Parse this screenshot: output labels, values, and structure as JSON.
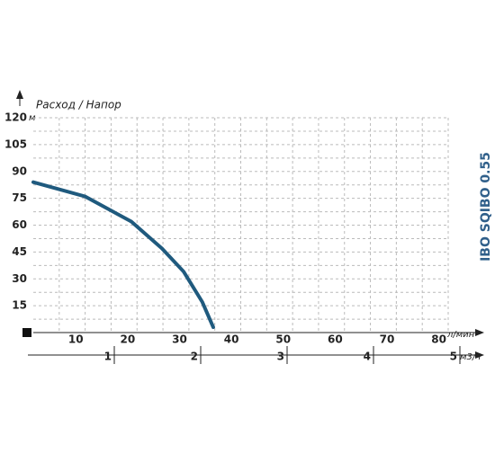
{
  "chart_data": {
    "type": "line",
    "axis_title": "Расход / Напор",
    "y_unit": "м",
    "x_unit": "л/мин",
    "x2_unit": "м3/ч",
    "side_title": "IBO SQIBO 0.55",
    "x": [
      0,
      10,
      18.9,
      24.8,
      29,
      32.6,
      34.7
    ],
    "series": [
      {
        "color": "#1f5a7e",
        "values": [
          84,
          76,
          62,
          47,
          34,
          17,
          3
        ]
      }
    ],
    "xlim": [
      0,
      80
    ],
    "xticks": [
      10,
      20,
      30,
      40,
      50,
      60,
      70,
      80
    ],
    "ylim": [
      0,
      120
    ],
    "yticks": [
      15,
      30,
      45,
      60,
      75,
      90,
      105,
      120
    ],
    "x2lim": [
      0,
      5
    ],
    "x2ticks": [
      1,
      2,
      3,
      4,
      5
    ],
    "grid": true,
    "side_title_color": "#2f5f8a"
  }
}
